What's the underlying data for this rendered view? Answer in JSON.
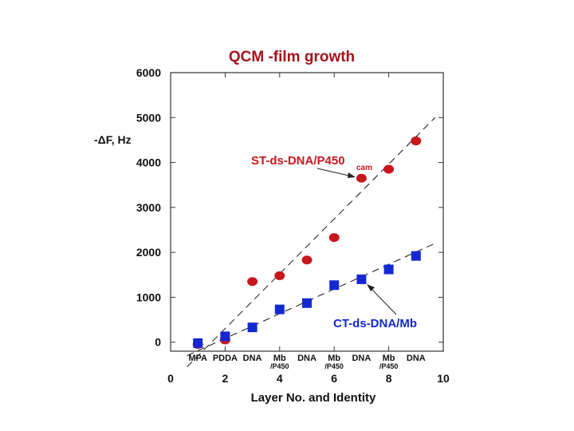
{
  "chart_data": {
    "type": "scatter",
    "title": "QCM -film growth",
    "xlabel": "Layer  No. and Identity",
    "ylabel": "-ΔF, Hz",
    "xlim": [
      0,
      10
    ],
    "ylim": [
      -200,
      6000
    ],
    "x_ticks": [
      0,
      2,
      4,
      6,
      8,
      10
    ],
    "y_ticks": [
      0,
      1000,
      2000,
      3000,
      4000,
      5000,
      6000
    ],
    "layer_labels": [
      {
        "x": 1,
        "line1": "MPA",
        "line2": ""
      },
      {
        "x": 2,
        "line1": "PDDA",
        "line2": ""
      },
      {
        "x": 3,
        "line1": "DNA",
        "line2": ""
      },
      {
        "x": 4,
        "line1": "Mb",
        "line2": "/P450"
      },
      {
        "x": 5,
        "line1": "DNA",
        "line2": ""
      },
      {
        "x": 6,
        "line1": "Mb",
        "line2": "/P450"
      },
      {
        "x": 7,
        "line1": "DNA",
        "line2": ""
      },
      {
        "x": 8,
        "line1": "Mb",
        "line2": "/P450"
      },
      {
        "x": 9,
        "line1": "DNA",
        "line2": ""
      }
    ],
    "series": [
      {
        "name": "ST-ds-DNA/P450cam",
        "marker": "circle",
        "color": "#c8161d",
        "x": [
          1,
          2,
          3,
          4,
          5,
          6,
          7,
          8,
          9
        ],
        "y": [
          -50,
          50,
          1350,
          1480,
          1830,
          2330,
          3650,
          3850,
          4480
        ],
        "fit": {
          "x": [
            0.6,
            9.7
          ],
          "y": [
            -550,
            5000
          ]
        }
      },
      {
        "name": "CT-ds-DNA/Mb",
        "marker": "square",
        "color": "#1428d2",
        "x": [
          1,
          2,
          3,
          4,
          5,
          6,
          7,
          8,
          9
        ],
        "y": [
          -20,
          130,
          330,
          730,
          870,
          1270,
          1400,
          1620,
          1920
        ],
        "fit": {
          "x": [
            0.6,
            9.7
          ],
          "y": [
            -300,
            2200
          ]
        }
      }
    ],
    "annotations": [
      {
        "label": "ST-ds-DNA/P450",
        "subscript": "cam",
        "points_to": [
          7,
          3650
        ]
      },
      {
        "label": "CT-ds-DNA/Mb",
        "points_to": [
          7,
          1400
        ]
      }
    ]
  }
}
